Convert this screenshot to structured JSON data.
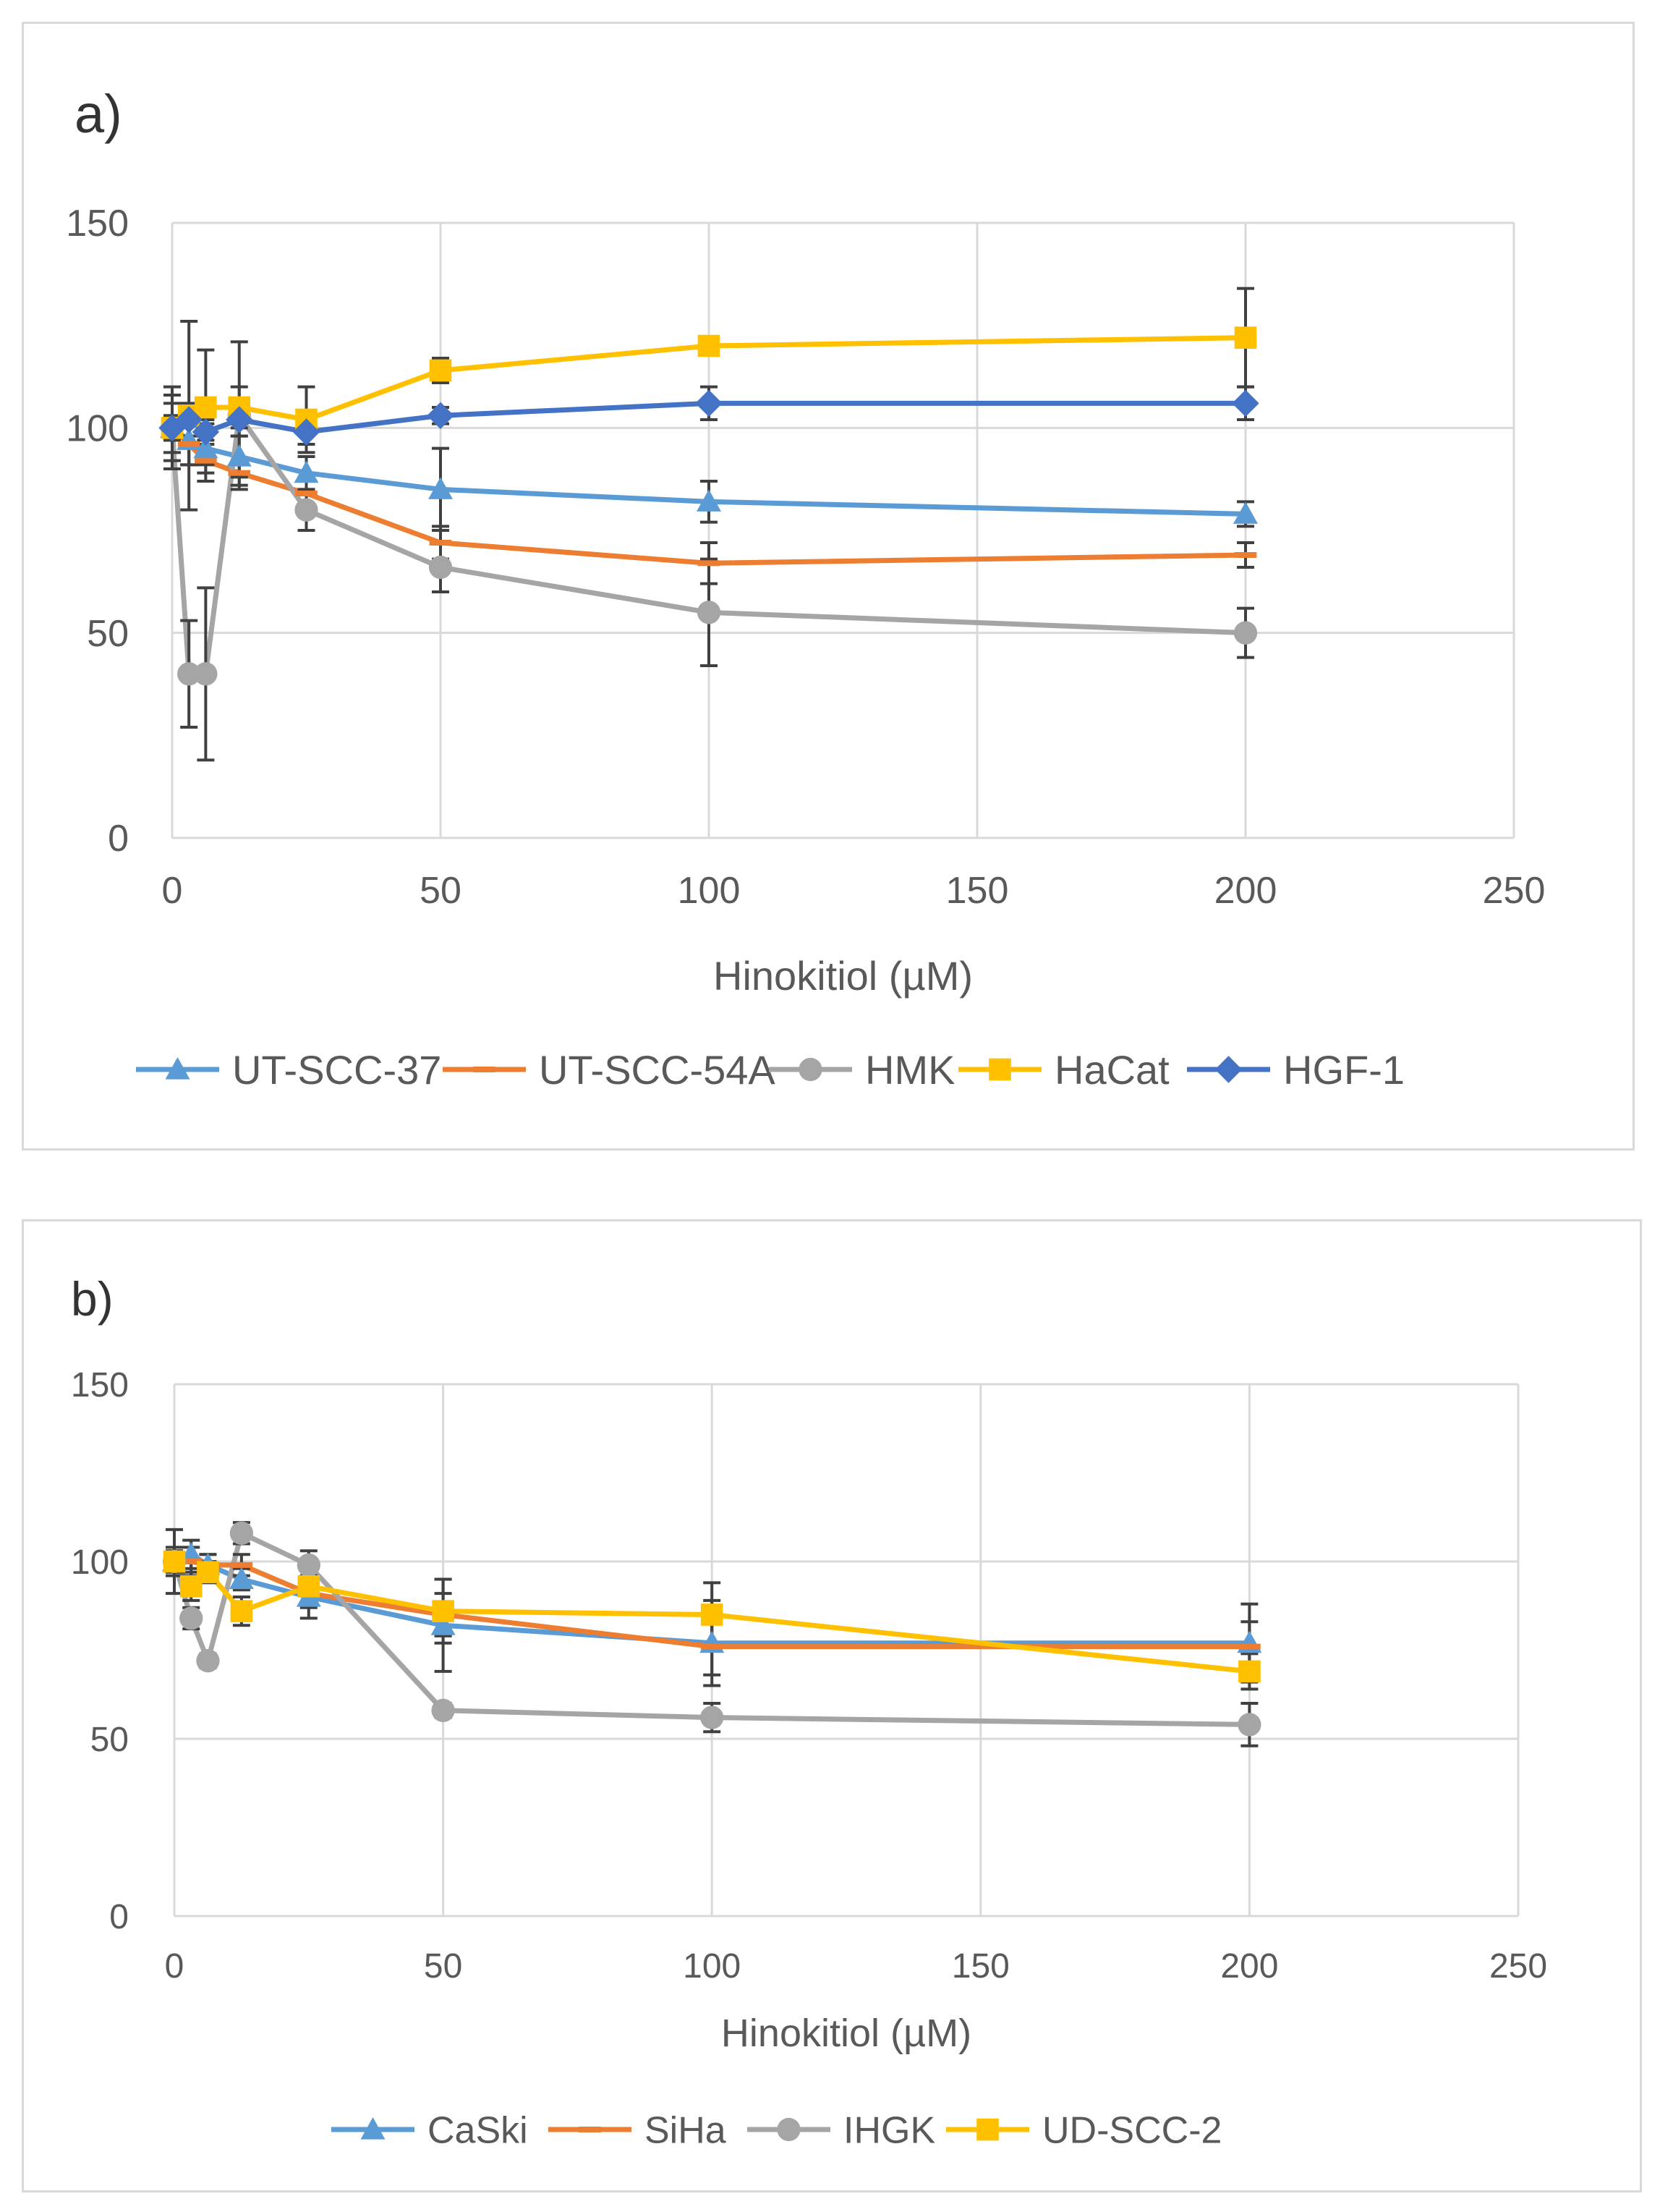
{
  "chart_data": [
    {
      "id": "a",
      "type": "line",
      "panel_label": "a)",
      "xlabel": "Hinokitiol (µM)",
      "ylabel": "",
      "xlim": [
        0,
        250
      ],
      "ylim": [
        0,
        150
      ],
      "xticks": [
        0,
        50,
        100,
        150,
        200,
        250
      ],
      "yticks": [
        0,
        50,
        100,
        150
      ],
      "grid": true,
      "legend_position": "bottom",
      "series": [
        {
          "name": "UT-SCC-37",
          "color": "#5B9BD5",
          "marker": "triangle",
          "x": [
            0,
            3.125,
            6.25,
            12.5,
            25,
            50,
            100,
            200
          ],
          "y": [
            100,
            97,
            95,
            93,
            89,
            85,
            82,
            79
          ],
          "err": [
            8,
            6,
            6,
            5,
            4,
            10,
            5,
            3
          ]
        },
        {
          "name": "UT-SCC-54A",
          "color": "#ED7D31",
          "marker": "dash",
          "x": [
            0,
            3.125,
            6.25,
            12.5,
            25,
            50,
            100,
            200
          ],
          "y": [
            100,
            96,
            92,
            89,
            84,
            72,
            67,
            69
          ],
          "err": [
            6,
            5,
            5,
            3,
            3,
            4,
            5,
            3
          ]
        },
        {
          "name": "HMK",
          "color": "#A5A5A5",
          "marker": "circle",
          "x": [
            0,
            3.125,
            6.25,
            12.5,
            25,
            50,
            100,
            200
          ],
          "y": [
            100,
            40,
            40,
            103,
            80,
            66,
            55,
            50
          ],
          "err": [
            10,
            13,
            21,
            18,
            5,
            6,
            13,
            6
          ]
        },
        {
          "name": "HaCat",
          "color": "#FFC000",
          "marker": "square",
          "x": [
            0,
            3.125,
            6.25,
            12.5,
            25,
            50,
            100,
            200
          ],
          "y": [
            100,
            103,
            105,
            105,
            102,
            114,
            120,
            122
          ],
          "err": [
            3,
            23,
            14,
            5,
            8,
            3,
            2,
            12
          ]
        },
        {
          "name": "HGF-1",
          "color": "#4472C4",
          "marker": "diamond",
          "x": [
            0,
            3.125,
            6.25,
            12.5,
            25,
            50,
            100,
            200
          ],
          "y": [
            100,
            102,
            99,
            102,
            99,
            103,
            106,
            106
          ],
          "err": [
            3,
            4,
            3,
            4,
            3,
            2,
            4,
            4
          ]
        }
      ]
    },
    {
      "id": "b",
      "type": "line",
      "panel_label": "b)",
      "xlabel": "Hinokitiol (µM)",
      "ylabel": "",
      "xlim": [
        0,
        250
      ],
      "ylim": [
        0,
        150
      ],
      "xticks": [
        0,
        50,
        100,
        150,
        200,
        250
      ],
      "yticks": [
        0,
        50,
        100,
        150
      ],
      "grid": true,
      "legend_position": "bottom",
      "series": [
        {
          "name": "CaSki",
          "color": "#5B9BD5",
          "marker": "triangle",
          "x": [
            0,
            3.125,
            6.25,
            12.5,
            25,
            50,
            100,
            200
          ],
          "y": [
            100,
            102,
            99,
            95,
            90,
            82,
            77,
            77
          ],
          "err": [
            9,
            4,
            3,
            3,
            6,
            13,
            12,
            11
          ]
        },
        {
          "name": "SiHa",
          "color": "#ED7D31",
          "marker": "dash",
          "x": [
            0,
            3.125,
            6.25,
            12.5,
            25,
            50,
            100,
            200
          ],
          "y": [
            100,
            100,
            99,
            99,
            91,
            85,
            76,
            76
          ],
          "err": [
            4,
            4,
            3,
            3,
            4,
            6,
            8,
            7
          ]
        },
        {
          "name": "IHGK",
          "color": "#A5A5A5",
          "marker": "circle",
          "x": [
            0,
            3.125,
            6.25,
            12.5,
            25,
            50,
            100,
            200
          ],
          "y": [
            100,
            84,
            72,
            108,
            99,
            58,
            56,
            54
          ],
          "err": [
            3,
            3,
            2,
            3,
            4,
            2,
            4,
            6
          ]
        },
        {
          "name": "UD-SCC-2",
          "color": "#FFC000",
          "marker": "square",
          "x": [
            0,
            3.125,
            6.25,
            12.5,
            25,
            50,
            100,
            200
          ],
          "y": [
            100,
            93,
            97,
            86,
            93,
            86,
            85,
            69
          ],
          "err": [
            3,
            4,
            3,
            4,
            5,
            9,
            9,
            5
          ]
        }
      ]
    }
  ]
}
